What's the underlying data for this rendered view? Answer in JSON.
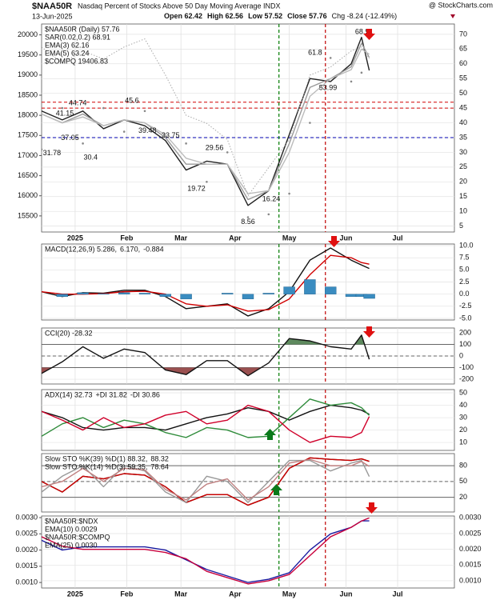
{
  "header": {
    "title": "$NAA50R",
    "subtitle": "Nasdaq Percent of Stocks Above 50 Day Moving Average INDX",
    "date": "13-Jun-2025",
    "stats": [
      "Open 62.42",
      "High 62.56",
      "Low 57.52",
      "Close 57.76",
      "Chg -8.24 (-12.49%)"
    ],
    "credit": "@ StockCharts.com"
  },
  "chart_data": {
    "type": "stock",
    "x": [
      0,
      8,
      16,
      24,
      32,
      40,
      48,
      56,
      64,
      72,
      80,
      88,
      96,
      104,
      112,
      120,
      124,
      127
    ],
    "xlim": [
      0,
      160
    ],
    "xticks": [
      {
        "value": 13,
        "label": "2025"
      },
      {
        "value": 33,
        "label": "Feb"
      },
      {
        "value": 54,
        "label": "Mar"
      },
      {
        "value": 75,
        "label": "Apr"
      },
      {
        "value": 96,
        "label": "May"
      },
      {
        "value": 118,
        "label": "Jun"
      },
      {
        "value": 138,
        "label": "Jul"
      }
    ],
    "vlines": [
      {
        "x": 92,
        "color": "#007a00"
      },
      {
        "x": 110,
        "color": "#c00000"
      }
    ],
    "panels": [
      {
        "type": "line",
        "x_labels": true,
        "ylim": [
          3,
          73.5
        ],
        "yticks": [
          5,
          10,
          15,
          20,
          25,
          30,
          35,
          40,
          45,
          50,
          55,
          60,
          65,
          70
        ],
        "y2lim": [
          15100,
          20270
        ],
        "y2ticks": [
          15500,
          16000,
          16500,
          17000,
          17500,
          18000,
          18500,
          19000,
          19500,
          20000
        ],
        "hlines": [
          {
            "value": 47,
            "color": "#d00000",
            "dash": true
          },
          {
            "value": 45,
            "color": "#d00000",
            "dash": true
          },
          {
            "value": 35,
            "color": "#0000b0",
            "dash": true
          }
        ],
        "series": [
          {
            "name": "$NAA50R (Daily) 57.76",
            "color": "#222222",
            "style": "line",
            "values": [
              44,
              41,
              44,
              38,
              41,
              39,
              34,
              24,
              27,
              26,
              12,
              17,
              36,
              55,
              54,
              60,
              69,
              57.76
            ]
          },
          {
            "name": "SAR(0.02,0.2) 68.91",
            "color": "#888888",
            "style": "dots",
            "values": [
              31,
              45,
              33,
              45,
              37,
              44,
              45,
              33,
              20,
              30,
              8,
              9,
              16,
              40,
              62,
              54,
              57,
              68.91
            ]
          },
          {
            "name": "EMA(3) 62.16",
            "color": "#999999",
            "style": "line",
            "values": [
              43,
              40,
              43,
              39,
              41,
              40,
              35,
              26,
              26,
              26,
              14,
              17,
              33,
              52,
              55,
              59,
              67,
              62.16
            ]
          },
          {
            "name": "EMA(5) 63.24",
            "color": "#bbbbbb",
            "style": "line",
            "values": [
              43,
              40,
              42,
              39,
              41,
              40,
              36,
              28,
              26,
              26,
              16,
              17,
              30,
              49,
              55,
              58,
              65,
              63.24
            ]
          },
          {
            "name": "$COMPQ 19406.83",
            "color": "#aaaaaa",
            "style": "dotted",
            "axis": "y2",
            "values": [
              19700,
              19300,
              19600,
              19400,
              19700,
              19900,
              19000,
              18000,
              17800,
              17400,
              16000,
              16700,
              17400,
              19000,
              19200,
              19600,
              19700,
              19406.83
            ]
          }
        ],
        "annotations": [
          {
            "x": 4,
            "value": 31.78,
            "pos": "below"
          },
          {
            "x": 9,
            "value": 41.15,
            "pos": "above"
          },
          {
            "x": 14,
            "value": 44.74,
            "pos": "above"
          },
          {
            "x": 11,
            "value": 37.05,
            "pos": "below"
          },
          {
            "x": 19,
            "value": 30.4,
            "pos": "below"
          },
          {
            "x": 35,
            "value": 45.6,
            "pos": "above"
          },
          {
            "x": 41,
            "value": 39.48,
            "pos": "below"
          },
          {
            "x": 50,
            "value": 33.75,
            "pos": "above"
          },
          {
            "x": 67,
            "value": 29.56,
            "pos": "above"
          },
          {
            "x": 60,
            "value": 19.72,
            "pos": "below"
          },
          {
            "x": 80,
            "value": 8.56,
            "pos": "below"
          },
          {
            "x": 89,
            "value": 16.24,
            "pos": "below"
          },
          {
            "x": 106,
            "value": 61.8,
            "pos": "above"
          },
          {
            "x": 111,
            "value": 53.99,
            "pos": "below"
          },
          {
            "x": 125,
            "value": 68.91,
            "pos": "above"
          }
        ]
      },
      {
        "type": "line",
        "ylim": [
          -5.33,
          10.33
        ],
        "yticks": [
          {
            "value": 10,
            "label": "10.0"
          },
          7.5,
          {
            "value": 5,
            "label": "5.0"
          },
          2.5,
          {
            "value": 0,
            "label": "0.0"
          },
          -2.5,
          {
            "value": -5,
            "label": "-5.0"
          }
        ],
        "series": [
          {
            "name": "MACD(12,26,9) 5.286,",
            "color": "#111111",
            "style": "line",
            "values": [
              0.5,
              -0.5,
              0.3,
              0.2,
              0.8,
              0.8,
              -0.5,
              -3,
              -2.5,
              -2,
              -4.5,
              -3,
              0.5,
              7,
              9.5,
              7,
              6,
              5.286
            ]
          },
          {
            "name": "6.170,",
            "color": "#d00000",
            "style": "line",
            "values": [
              0.5,
              0,
              0,
              0.1,
              0.5,
              0.6,
              0,
              -2,
              -2.5,
              -2.2,
              -3.5,
              -3.2,
              -1,
              4,
              8,
              7.5,
              6.5,
              6.17
            ]
          },
          {
            "name": "-0.884",
            "color": "#3a8cc0",
            "style": "bars",
            "values": [
              0,
              -0.5,
              0.3,
              0.1,
              0.3,
              0.2,
              -0.5,
              -1,
              0,
              0.2,
              -1,
              0.2,
              1.5,
              3,
              1.5,
              -0.5,
              -0.5,
              -0.884
            ]
          }
        ]
      },
      {
        "type": "line",
        "ylim": [
          -241,
          241
        ],
        "yticks": [
          200,
          100,
          0,
          -100,
          -200
        ],
        "hlines": [
          {
            "value": 100,
            "color": "#666666"
          },
          {
            "value": 0,
            "color": "#666666",
            "dash": true
          },
          {
            "value": -100,
            "color": "#666666"
          }
        ],
        "series": [
          {
            "name": "CCI(20) -28.32",
            "color": "#111111",
            "style": "cci",
            "values": [
              -150,
              -50,
              80,
              -20,
              60,
              30,
              -120,
              -160,
              -40,
              -40,
              -170,
              -60,
              150,
              130,
              80,
              60,
              180,
              -28.32
            ]
          }
        ]
      },
      {
        "type": "line",
        "ylim": [
          3.6,
          52.6
        ],
        "yticks": [
          50,
          40,
          30,
          20,
          10
        ],
        "series": [
          {
            "name": "ADX(14) 32.73",
            "color": "#111111",
            "style": "line",
            "values": [
              35,
              30,
              22,
              20,
              22,
              22,
              20,
              25,
              30,
              33,
              38,
              35,
              28,
              35,
              40,
              38,
              36,
              32.73
            ]
          },
          {
            "name": "+DI 31.82",
            "color": "#2e8b3a",
            "style": "line",
            "values": [
              15,
              25,
              30,
              22,
              28,
              25,
              18,
              14,
              22,
              20,
              14,
              15,
              30,
              45,
              40,
              42,
              38,
              31.82
            ]
          },
          {
            "name": "-DI 30.86",
            "color": "#d0002a",
            "style": "line",
            "values": [
              35,
              28,
              20,
              30,
              22,
              25,
              32,
              35,
              25,
              28,
              40,
              35,
              20,
              10,
              15,
              14,
              18,
              30.86
            ]
          }
        ]
      },
      {
        "type": "line",
        "ylim": [
          -8,
          103
        ],
        "yticks": [
          80,
          50,
          20
        ],
        "hlines": [
          {
            "value": 80,
            "color": "#666666"
          },
          {
            "value": 50,
            "color": "#666666",
            "dash": true
          },
          {
            "value": 20,
            "color": "#666666"
          }
        ],
        "series": [
          {
            "name": "Slow STO %K(39) %D(1) 88.32,",
            "color": "#111111",
            "style": "line",
            "values": [
              50,
              30,
              60,
              55,
              65,
              62,
              40,
              10,
              25,
              25,
              5,
              20,
              75,
              95,
              92,
              90,
              93,
              88.32
            ]
          },
          {
            "name": "88.32",
            "color": "#d00000",
            "style": "line",
            "values": [
              50,
              30,
              60,
              55,
              65,
              62,
              40,
              10,
              25,
              25,
              5,
              20,
              75,
              95,
              92,
              90,
              93,
              88.32
            ]
          },
          {
            "name": "Slow STO %K(14) %D(3) 59.35,",
            "color": "#999999",
            "style": "line",
            "values": [
              30,
              60,
              80,
              40,
              80,
              70,
              30,
              10,
              60,
              50,
              10,
              50,
              90,
              90,
              70,
              85,
              90,
              59.35
            ]
          },
          {
            "name": "78.64",
            "color": "#c08080",
            "style": "line",
            "values": [
              40,
              50,
              75,
              50,
              75,
              72,
              35,
              15,
              45,
              55,
              15,
              40,
              85,
              92,
              80,
              80,
              88,
              78.64
            ]
          }
        ]
      },
      {
        "type": "line",
        "x_labels": true,
        "ylim": [
          0.00077,
          0.00306
        ],
        "yticks": [
          {
            "value": 0.003,
            "label": "0.0030"
          },
          {
            "value": 0.0025,
            "label": "0.0025"
          },
          {
            "value": 0.002,
            "label": "0.0020"
          },
          {
            "value": 0.0015,
            "label": "0.0015"
          },
          {
            "value": 0.001,
            "label": "0.0010"
          }
        ],
        "y2lim": [
          0.00083,
          0.00305
        ],
        "y2ticks": [
          {
            "value": 0.003,
            "label": "0.0030"
          },
          {
            "value": 0.0025,
            "label": "0.0025"
          },
          {
            "value": 0.002,
            "label": "0.0020"
          },
          {
            "value": 0.0015,
            "label": "0.0015"
          },
          {
            "value": 0.001,
            "label": "0.0010"
          }
        ],
        "series": [
          {
            "name": "$NAA50R:$NDX",
            "ema": "EMA(10) 0.0029",
            "color": "#1a1aa0",
            "style": "line",
            "axis": "y2",
            "values": [
              0.0023,
              0.002,
              0.0021,
              0.0021,
              0.0021,
              0.0021,
              0.002,
              0.0017,
              0.0014,
              0.0012,
              0.001,
              0.0011,
              0.0013,
              0.002,
              0.0025,
              0.0027,
              0.0029,
              0.0029
            ]
          },
          {
            "name": "$NAA50R:$COMPQ",
            "ema": "EMA(25) 0.0030",
            "color": "#c8003c",
            "style": "line",
            "values": [
              0.0024,
              0.0021,
              0.002,
              0.002,
              0.002,
              0.002,
              0.0019,
              0.0017,
              0.0013,
              0.0011,
              0.0009,
              0.001,
              0.0012,
              0.0018,
              0.0024,
              0.0027,
              0.0029,
              0.003
            ]
          }
        ]
      }
    ]
  }
}
